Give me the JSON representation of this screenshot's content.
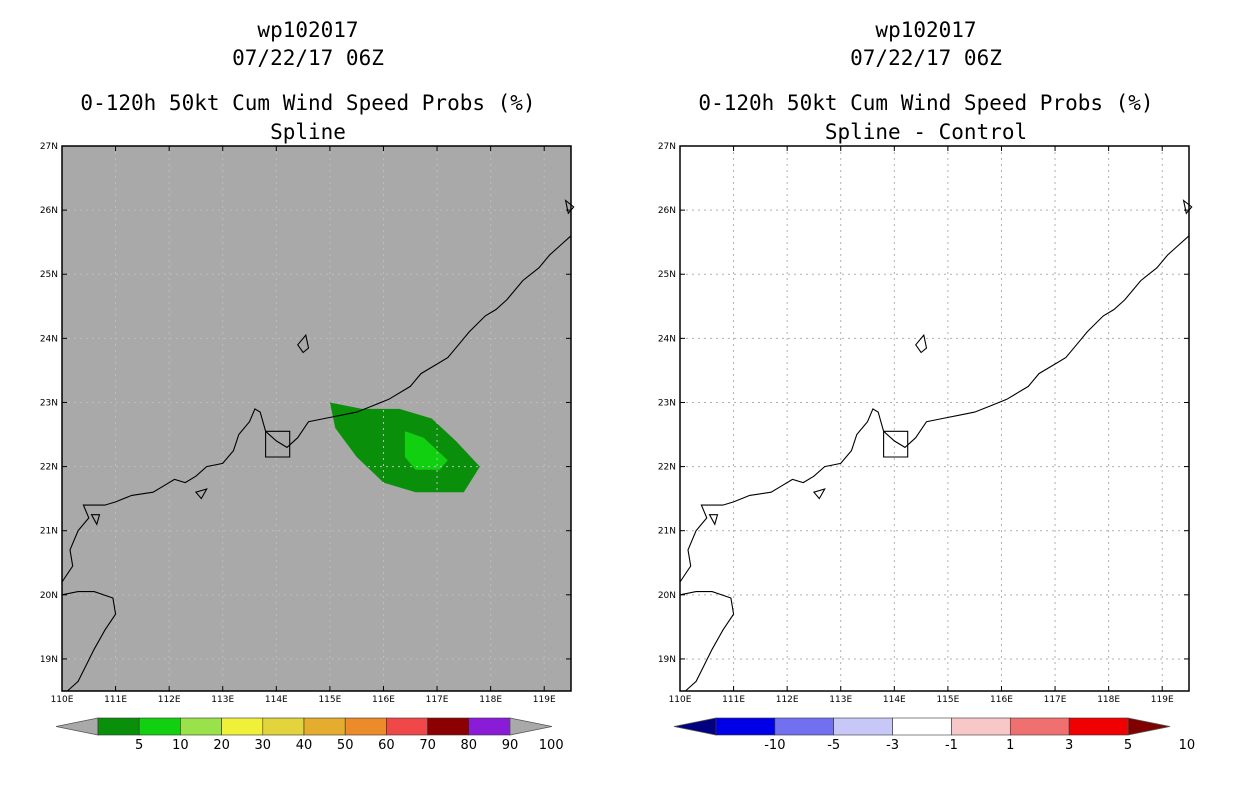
{
  "panels": [
    {
      "id": "left",
      "title_line1": "wp102017",
      "title_line2": "07/22/17 06Z",
      "title_line3": "0-120h 50kt Cum Wind Speed Probs (%)",
      "title_line4": "Spline",
      "background_color": "#a9a9a9",
      "colorbar": {
        "colors": [
          "#a9a9a9",
          "#0a8f0a",
          "#10d010",
          "#99e24a",
          "#f0f03a",
          "#e2d43a",
          "#e5ad2e",
          "#ec8b2a",
          "#f04848",
          "#8b0000",
          "#8a1cd8",
          "#a9a9a9"
        ],
        "labels": [
          "5",
          "10",
          "20",
          "30",
          "40",
          "50",
          "60",
          "70",
          "80",
          "90",
          "100"
        ]
      }
    },
    {
      "id": "right",
      "title_line1": "wp102017",
      "title_line2": "07/22/17 06Z",
      "title_line3": "0-120h 50kt Cum Wind Speed Probs (%)",
      "title_line4": "Spline - Control",
      "background_color": "#ffffff",
      "colorbar": {
        "colors": [
          "#000080",
          "#0000e8",
          "#7070f0",
          "#c8c8f8",
          "#ffffff",
          "#f8c8c8",
          "#f07070",
          "#f00000",
          "#800000"
        ],
        "labels": [
          "-10",
          "-5",
          "-3",
          "-1",
          "1",
          "3",
          "5",
          "10"
        ]
      }
    }
  ],
  "map": {
    "lon_labels": [
      "110E",
      "111E",
      "112E",
      "113E",
      "114E",
      "115E",
      "116E",
      "117E",
      "118E",
      "119E"
    ],
    "lat_labels": [
      "27N",
      "26N",
      "25N",
      "24N",
      "23N",
      "22N",
      "21N",
      "20N",
      "19N"
    ],
    "lon_range": [
      110,
      119.5
    ],
    "lat_range": [
      18.5,
      27
    ],
    "grid": true
  },
  "probability_contours": [
    {
      "level": "5-10%",
      "color": "#0a8f0a",
      "lonlat": [
        [
          115.0,
          23.0
        ],
        [
          115.6,
          22.9
        ],
        [
          116.3,
          22.9
        ],
        [
          116.9,
          22.75
        ],
        [
          117.35,
          22.4
        ],
        [
          117.8,
          22.0
        ],
        [
          117.5,
          21.6
        ],
        [
          116.6,
          21.6
        ],
        [
          116.0,
          21.75
        ],
        [
          115.5,
          22.15
        ],
        [
          115.1,
          22.6
        ]
      ]
    },
    {
      "level": "10-20%",
      "color": "#10d010",
      "lonlat": [
        [
          116.4,
          22.55
        ],
        [
          116.75,
          22.45
        ],
        [
          117.2,
          22.1
        ],
        [
          117.05,
          21.95
        ],
        [
          116.6,
          21.95
        ],
        [
          116.4,
          22.15
        ]
      ]
    }
  ],
  "coastline": {
    "mainland": [
      [
        110.0,
        20.2
      ],
      [
        110.2,
        20.45
      ],
      [
        110.15,
        20.7
      ],
      [
        110.3,
        21.0
      ],
      [
        110.5,
        21.2
      ],
      [
        110.4,
        21.4
      ],
      [
        110.8,
        21.4
      ],
      [
        111.0,
        21.45
      ],
      [
        111.3,
        21.55
      ],
      [
        111.7,
        21.6
      ],
      [
        111.9,
        21.7
      ],
      [
        112.1,
        21.8
      ],
      [
        112.3,
        21.75
      ],
      [
        112.5,
        21.85
      ],
      [
        112.7,
        22.0
      ],
      [
        113.0,
        22.05
      ],
      [
        113.2,
        22.25
      ],
      [
        113.3,
        22.5
      ],
      [
        113.5,
        22.7
      ],
      [
        113.6,
        22.9
      ],
      [
        113.7,
        22.85
      ],
      [
        113.8,
        22.55
      ],
      [
        114.0,
        22.4
      ],
      [
        114.2,
        22.3
      ],
      [
        114.4,
        22.45
      ],
      [
        114.6,
        22.7
      ],
      [
        114.9,
        22.75
      ],
      [
        115.2,
        22.8
      ],
      [
        115.5,
        22.85
      ],
      [
        115.8,
        22.95
      ],
      [
        116.1,
        23.05
      ],
      [
        116.5,
        23.25
      ],
      [
        116.7,
        23.45
      ],
      [
        117.0,
        23.6
      ],
      [
        117.2,
        23.7
      ],
      [
        117.4,
        23.9
      ],
      [
        117.6,
        24.1
      ],
      [
        117.9,
        24.35
      ],
      [
        118.1,
        24.45
      ],
      [
        118.3,
        24.6
      ],
      [
        118.6,
        24.9
      ],
      [
        118.9,
        25.1
      ],
      [
        119.1,
        25.3
      ],
      [
        119.3,
        25.45
      ],
      [
        119.5,
        25.6
      ]
    ],
    "hainan": [
      [
        110.0,
        20.0
      ],
      [
        110.3,
        20.05
      ],
      [
        110.6,
        20.05
      ],
      [
        110.95,
        19.95
      ],
      [
        111.0,
        19.7
      ],
      [
        110.8,
        19.45
      ],
      [
        110.6,
        19.15
      ],
      [
        110.45,
        18.9
      ],
      [
        110.3,
        18.65
      ],
      [
        110.1,
        18.5
      ],
      [
        110.0,
        18.5
      ]
    ],
    "kowloon_box": [
      [
        113.8,
        22.55
      ],
      [
        114.25,
        22.55
      ],
      [
        114.25,
        22.15
      ],
      [
        113.8,
        22.15
      ]
    ],
    "islands": [
      [
        [
          114.4,
          23.9
        ],
        [
          114.55,
          24.05
        ],
        [
          114.6,
          23.85
        ],
        [
          114.5,
          23.78
        ]
      ],
      [
        [
          110.55,
          21.25
        ],
        [
          110.7,
          21.25
        ],
        [
          110.65,
          21.1
        ]
      ],
      [
        [
          112.5,
          21.6
        ],
        [
          112.7,
          21.65
        ],
        [
          112.6,
          21.5
        ]
      ],
      [
        [
          119.4,
          26.15
        ],
        [
          119.55,
          26.05
        ],
        [
          119.45,
          25.95
        ]
      ]
    ]
  }
}
